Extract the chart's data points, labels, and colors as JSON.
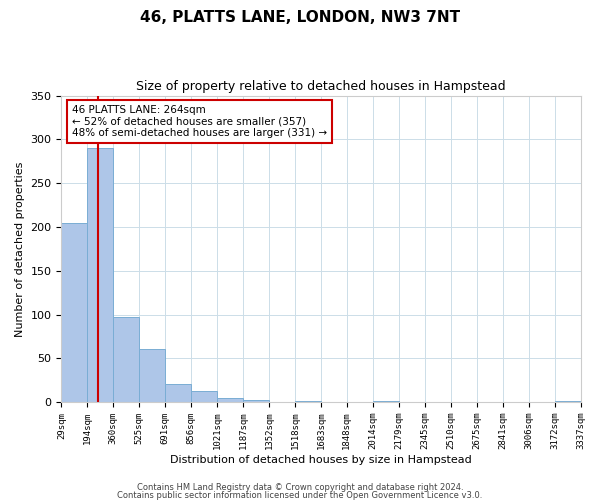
{
  "title": "46, PLATTS LANE, LONDON, NW3 7NT",
  "subtitle": "Size of property relative to detached houses in Hampstead",
  "xlabel": "Distribution of detached houses by size in Hampstead",
  "ylabel": "Number of detached properties",
  "bar_edges": [
    29,
    194,
    360,
    525,
    691,
    856,
    1021,
    1187,
    1352,
    1518,
    1683,
    1848,
    2014,
    2179,
    2345,
    2510,
    2675,
    2841,
    3006,
    3172,
    3337
  ],
  "bar_heights": [
    205,
    290,
    97,
    61,
    21,
    13,
    5,
    2,
    0,
    1,
    0,
    0,
    1,
    0,
    0,
    0,
    0,
    0,
    0,
    1
  ],
  "bar_color": "#aec6e8",
  "bar_edgecolor": "#7aadd4",
  "property_value": 264,
  "vline_color": "#cc0000",
  "annotation_line1": "46 PLATTS LANE: 264sqm",
  "annotation_line2": "← 52% of detached houses are smaller (357)",
  "annotation_line3": "48% of semi-detached houses are larger (331) →",
  "annotation_box_edgecolor": "#cc0000",
  "annotation_box_facecolor": "#ffffff",
  "ylim": [
    0,
    350
  ],
  "yticks": [
    0,
    50,
    100,
    150,
    200,
    250,
    300,
    350
  ],
  "tick_labels": [
    "29sqm",
    "194sqm",
    "360sqm",
    "525sqm",
    "691sqm",
    "856sqm",
    "1021sqm",
    "1187sqm",
    "1352sqm",
    "1518sqm",
    "1683sqm",
    "1848sqm",
    "2014sqm",
    "2179sqm",
    "2345sqm",
    "2510sqm",
    "2675sqm",
    "2841sqm",
    "3006sqm",
    "3172sqm",
    "3337sqm"
  ],
  "footer_line1": "Contains HM Land Registry data © Crown copyright and database right 2024.",
  "footer_line2": "Contains public sector information licensed under the Open Government Licence v3.0.",
  "bg_color": "#ffffff",
  "grid_color": "#ccdde8",
  "title_fontsize": 11,
  "subtitle_fontsize": 9,
  "ylabel_fontsize": 8,
  "xlabel_fontsize": 8,
  "ytick_fontsize": 8,
  "xtick_fontsize": 6.5,
  "annotation_fontsize": 7.5,
  "footer_fontsize": 6
}
